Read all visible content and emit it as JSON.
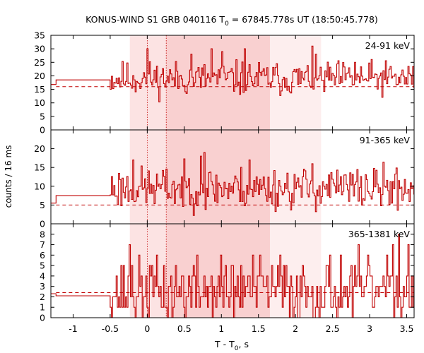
{
  "chart_data": {
    "type": "line",
    "title": "KONUS-WIND S1 GRB 040116 T",
    "title_sub": "0",
    "title_rest": " = 67845.778s UT (18:50:45.778)",
    "xlabel": "T - T",
    "xlabel_sub": "0",
    "xlabel_rest": ", s",
    "ylabel": "counts / 16 ms",
    "xlim": [
      -1.3,
      3.6
    ],
    "x_ticks": [
      -1,
      -0.5,
      0,
      0.5,
      1,
      1.5,
      2,
      2.5,
      3,
      3.5
    ],
    "x_tick_labels": [
      "-1",
      "-0.5",
      "0",
      "0.5",
      "1",
      "1.5",
      "2",
      "2.5",
      "3",
      "3.5"
    ],
    "bin_width": 0.016,
    "grid": false,
    "trigger_lines": [
      0.0,
      0.256
    ],
    "shaded_regions": [
      {
        "x0": -0.235,
        "x1": 1.655,
        "color": "#fce3e3"
      },
      {
        "x0": 0.256,
        "x1": 1.655,
        "color": "#f9d0d0"
      },
      {
        "x0": 1.655,
        "x1": 2.345,
        "color": "#fdeeee"
      }
    ],
    "line_color": "#c00000",
    "panels": [
      {
        "label": "24-91 keV",
        "ylim": [
          0,
          35
        ],
        "yticks": [
          0,
          5,
          10,
          15,
          20,
          25,
          30,
          35
        ],
        "background_level": 16.0,
        "pre": [
          {
            "x0": -1.3,
            "x1": -1.23,
            "y": 16.8
          },
          {
            "x0": -1.23,
            "x1": -0.5,
            "y": 18.5
          }
        ],
        "mean": 19.0,
        "amp": 4.5,
        "seed": 11,
        "peaks": [
          {
            "x": 0.0,
            "y": 30
          },
          {
            "x": 0.59,
            "y": 28
          },
          {
            "x": 0.86,
            "y": 30
          },
          {
            "x": 1.0,
            "y": 29
          },
          {
            "x": 1.31,
            "y": 30
          },
          {
            "x": 2.22,
            "y": 31
          },
          {
            "x": 2.8,
            "y": 25
          }
        ]
      },
      {
        "label": "91-365 keV",
        "ylim": [
          0,
          25
        ],
        "yticks": [
          0,
          5,
          10,
          15,
          20
        ],
        "background_level": 5.0,
        "pre": [
          {
            "x0": -1.3,
            "x1": -1.23,
            "y": 5.5
          },
          {
            "x0": -1.23,
            "x1": -0.5,
            "y": 7.5
          }
        ],
        "mean": 9.5,
        "amp": 4.0,
        "seed": 23,
        "peaks": [
          {
            "x": -0.2,
            "y": 17
          },
          {
            "x": 0.76,
            "y": 19
          },
          {
            "x": 0.71,
            "y": 18
          },
          {
            "x": 1.37,
            "y": 17
          },
          {
            "x": 2.22,
            "y": 16
          },
          {
            "x": 2.45,
            "y": 13
          }
        ]
      },
      {
        "label": "365-1381 keV",
        "ylim": [
          0,
          9
        ],
        "yticks": [
          0,
          1,
          2,
          3,
          4,
          5,
          6,
          7,
          8
        ],
        "background_level": 2.4,
        "pre": [
          {
            "x0": -1.3,
            "x1": -1.23,
            "y": 2.3
          },
          {
            "x0": -1.23,
            "x1": -0.5,
            "y": 2.1
          }
        ],
        "mean": 2.6,
        "amp": 2.3,
        "seed": 37,
        "peaks": [
          {
            "x": -0.24,
            "y": 7
          },
          {
            "x": 3.38,
            "y": 8
          },
          {
            "x": 1.78,
            "y": 6
          },
          {
            "x": 3.52,
            "y": 7
          }
        ]
      }
    ]
  }
}
